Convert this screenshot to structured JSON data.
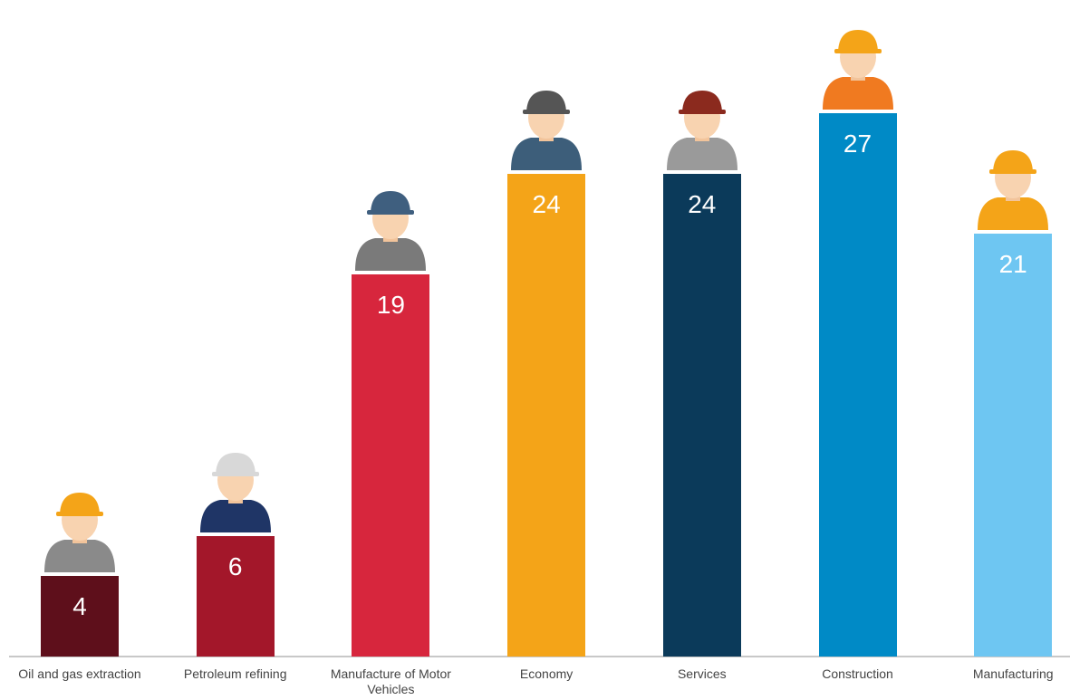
{
  "chart_data": {
    "type": "bar",
    "categories": [
      "Oil and gas extraction",
      "Petroleum refining",
      "Manufacture of Motor Vehicles",
      "Economy",
      "Services",
      "Construction",
      "Manufacturing"
    ],
    "values": [
      4,
      6,
      19,
      24,
      24,
      27,
      21
    ],
    "colors": [
      "#5e0f1b",
      "#a3172a",
      "#d7263d",
      "#f4a418",
      "#0b3a5a",
      "#008ac6",
      "#6ec6f2"
    ]
  }
}
